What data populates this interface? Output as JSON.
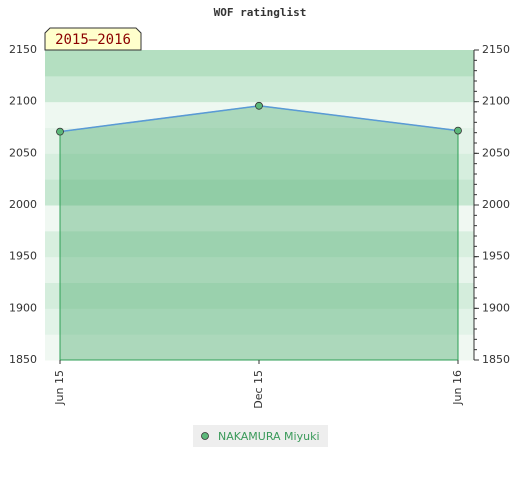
{
  "chart_data": {
    "type": "area",
    "title": "WOF ratinglist",
    "annotation": "2015–2016",
    "categories": [
      "Jun 15",
      "Dec 15",
      "Jun 16"
    ],
    "series": [
      {
        "name": "NAKAMURA Miyuki",
        "color": "#5a9ad6",
        "marker_color": "#5cb87a",
        "values": [
          2071,
          2096,
          2072
        ]
      }
    ],
    "ylim": [
      1850,
      2150
    ],
    "yticks": [
      1850,
      1900,
      1950,
      2000,
      2050,
      2100,
      2150
    ],
    "grid": true
  }
}
